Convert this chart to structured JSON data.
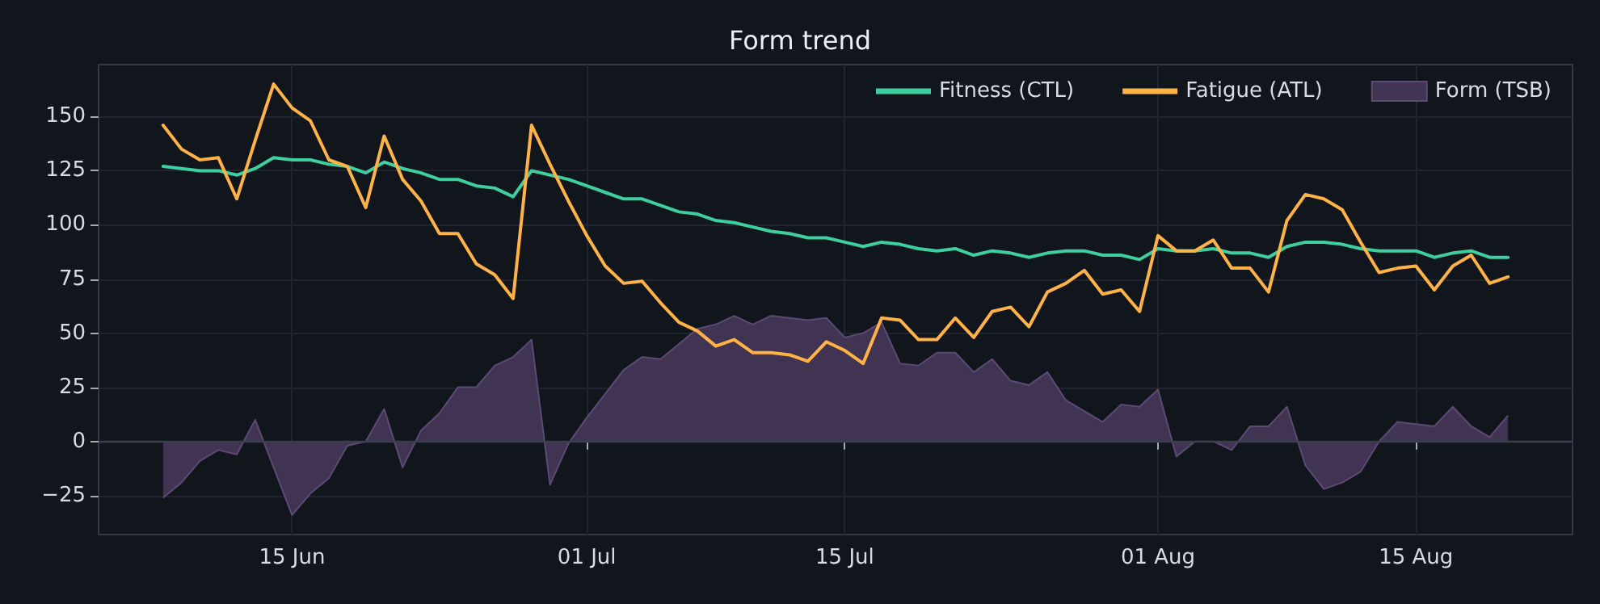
{
  "chart_data": {
    "type": "line",
    "title": "Form trend",
    "x": [
      "--06-08",
      "--06-09",
      "--06-10",
      "--06-11",
      "--06-12",
      "--06-13",
      "--06-14",
      "--06-15",
      "--06-16",
      "--06-17",
      "--06-18",
      "--06-19",
      "--06-20",
      "--06-21",
      "--06-22",
      "--06-23",
      "--06-24",
      "--06-25",
      "--06-26",
      "--06-27",
      "--06-28",
      "--06-29",
      "--06-30",
      "--07-01",
      "--07-02",
      "--07-03",
      "--07-04",
      "--07-05",
      "--07-06",
      "--07-07",
      "--07-08",
      "--07-09",
      "--07-10",
      "--07-11",
      "--07-12",
      "--07-13",
      "--07-14",
      "--07-15",
      "--07-16",
      "--07-17",
      "--07-18",
      "--07-19",
      "--07-20",
      "--07-21",
      "--07-22",
      "--07-23",
      "--07-24",
      "--07-25",
      "--07-26",
      "--07-27",
      "--07-28",
      "--07-29",
      "--07-30",
      "--07-31",
      "--08-01",
      "--08-02",
      "--08-03",
      "--08-04",
      "--08-05",
      "--08-06",
      "--08-07",
      "--08-08",
      "--08-09",
      "--08-10",
      "--08-11",
      "--08-12",
      "--08-13",
      "--08-14",
      "--08-15",
      "--08-16",
      "--08-17",
      "--08-18",
      "--08-19",
      "--08-20"
    ],
    "series": [
      {
        "name": "Fitness (CTL)",
        "color": "#3ecf9e",
        "values": [
          127,
          126,
          125,
          125,
          123,
          126,
          131,
          130,
          130,
          128,
          127,
          124,
          129,
          126,
          124,
          121,
          121,
          118,
          117,
          113,
          125,
          123,
          121,
          118,
          115,
          112,
          112,
          109,
          106,
          105,
          102,
          101,
          99,
          97,
          96,
          94,
          94,
          92,
          90,
          92,
          91,
          89,
          88,
          89,
          86,
          88,
          87,
          85,
          87,
          88,
          88,
          86,
          86,
          84,
          89,
          88,
          88,
          89,
          87,
          87,
          85,
          90,
          92,
          92,
          91,
          89,
          88,
          88,
          88,
          85,
          87,
          88,
          85,
          85
        ]
      },
      {
        "name": "Fatigue (ATL)",
        "color": "#ffb347",
        "values": [
          146,
          135,
          130,
          131,
          112,
          139,
          165,
          154,
          148,
          130,
          127,
          108,
          141,
          121,
          111,
          96,
          96,
          82,
          77,
          66,
          146,
          128,
          111,
          95,
          81,
          73,
          74,
          64,
          55,
          51,
          44,
          47,
          41,
          41,
          40,
          37,
          46,
          42,
          36,
          57,
          56,
          47,
          47,
          57,
          48,
          60,
          62,
          53,
          69,
          73,
          79,
          68,
          70,
          60,
          95,
          88,
          88,
          93,
          80,
          80,
          69,
          102,
          114,
          112,
          107,
          92,
          78,
          80,
          81,
          70,
          81,
          86,
          73,
          76
        ]
      },
      {
        "name": "Form (TSB)",
        "type": "area",
        "color": "#403452",
        "values": [
          -26,
          -19,
          -9,
          -4,
          -6,
          10,
          -12,
          -34,
          -24,
          -17,
          -2,
          0,
          15,
          -12,
          5,
          13,
          25,
          25,
          35,
          39,
          47,
          -20,
          -1,
          11,
          22,
          33,
          39,
          38,
          45,
          52,
          54,
          58,
          54,
          58,
          57,
          56,
          57,
          48,
          50,
          55,
          36,
          35,
          41,
          41,
          32,
          38,
          28,
          26,
          32,
          19,
          14,
          9,
          17,
          16,
          24,
          -7,
          0,
          0,
          -4,
          7,
          7,
          16,
          -11,
          -22,
          -19,
          -14,
          0,
          9,
          8,
          7,
          16,
          7,
          2,
          12
        ]
      }
    ],
    "xlim": [
      "--06-04T12:00",
      "--08-23T12:00"
    ],
    "xticks": [
      {
        "value": "--06-15",
        "label": "15 Jun"
      },
      {
        "value": "--07-01",
        "label": "01 Jul"
      },
      {
        "value": "--07-15",
        "label": "15 Jul"
      },
      {
        "value": "--08-01",
        "label": "01 Aug"
      },
      {
        "value": "--08-15",
        "label": "15 Aug"
      }
    ],
    "ylim": [
      -43,
      174
    ],
    "yticks": [
      {
        "value": -25,
        "label": "−25"
      },
      0,
      25,
      50,
      75,
      100,
      125,
      150
    ],
    "ref_lines": [
      {
        "axis": "y",
        "value": 0,
        "color": "#3a3f4d"
      }
    ],
    "grid": true,
    "legend": "top right",
    "marker": "none"
  }
}
